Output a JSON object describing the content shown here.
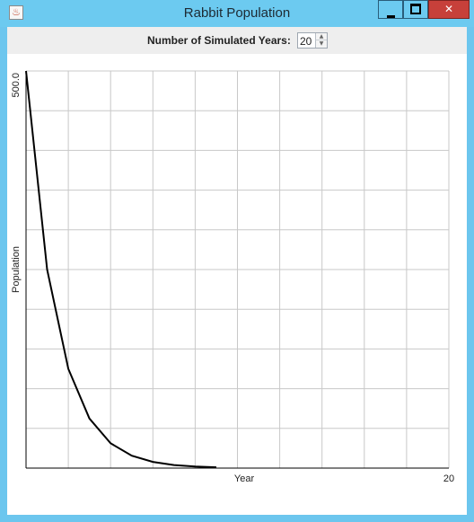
{
  "window": {
    "title": "Rabbit Population",
    "app_icon": "java-cup-icon"
  },
  "controls": {
    "years_label": "Number of Simulated Years:",
    "years_value": "20"
  },
  "chart_data": {
    "type": "line",
    "xlabel": "Year",
    "ylabel": "Population",
    "x_max_label": "20",
    "y_max_label": "500.0",
    "xlim": [
      0,
      20
    ],
    "ylim": [
      0,
      500
    ],
    "grid": true,
    "series": [
      {
        "x": [
          0,
          1,
          2,
          3,
          4,
          5,
          6,
          7,
          8,
          9
        ],
        "values": [
          500,
          250,
          125,
          62.5,
          31.25,
          15.6,
          7.8,
          3.9,
          2.0,
          1.0
        ]
      }
    ]
  },
  "colors": {
    "titlebar": "#6ccaf0",
    "close_button": "#c7403a",
    "grid": "#c8c8c8",
    "line": "#000000"
  }
}
